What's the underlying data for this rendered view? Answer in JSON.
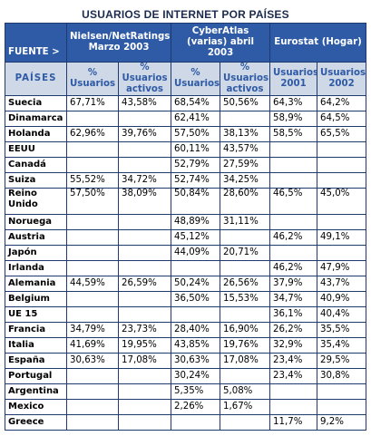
{
  "title": "USUARIOS DE INTERNET POR PAÍSES",
  "header": {
    "fuente": "FUENTE >",
    "sources": [
      "Nielsen/NetRatings Marzo 2003",
      "CyberAtlas (varias) abril 2003",
      "Eurostat (Hogar)"
    ],
    "paises": "PAÍSES",
    "subheaders": [
      "% Usuarios",
      "% Usuarios activos",
      "% Usuarios",
      "% Usuarios activos",
      "Usuarios 2001",
      "Usuarios 2002"
    ]
  },
  "rows": [
    {
      "country": "Suecia",
      "values": [
        "67,71%",
        "43,58%",
        "68,54%",
        "50,56%",
        "64,3%",
        "64,2%"
      ]
    },
    {
      "country": "Dinamarca",
      "values": [
        "",
        "",
        "62,41%",
        "",
        "58,9%",
        "64,5%"
      ]
    },
    {
      "country": "Holanda",
      "values": [
        "62,96%",
        "39,76%",
        "57,50%",
        "38,13%",
        "58,5%",
        "65,5%"
      ]
    },
    {
      "country": "EEUU",
      "values": [
        "",
        "",
        "60,11%",
        "43,57%",
        "",
        ""
      ]
    },
    {
      "country": "Canadá",
      "values": [
        "",
        "",
        "52,79%",
        "27,59%",
        "",
        ""
      ]
    },
    {
      "country": "Suiza",
      "values": [
        "55,52%",
        "34,72%",
        "52,74%",
        "34,25%",
        "",
        ""
      ]
    },
    {
      "country": "Reino Unido",
      "values": [
        "57,50%",
        "38,09%",
        "50,84%",
        "28,60%",
        "46,5%",
        "45,0%"
      ]
    },
    {
      "country": "Noruega",
      "values": [
        "",
        "",
        "48,89%",
        "31,11%",
        "",
        ""
      ]
    },
    {
      "country": "Austria",
      "values": [
        "",
        "",
        "45,12%",
        "",
        "46,2%",
        "49,1%"
      ]
    },
    {
      "country": "Japón",
      "values": [
        "",
        "",
        "44,09%",
        "20,71%",
        "",
        ""
      ]
    },
    {
      "country": "Irlanda",
      "values": [
        "",
        "",
        "",
        "",
        "46,2%",
        "47,9%"
      ]
    },
    {
      "country": "Alemania",
      "values": [
        "44,59%",
        "26,59%",
        "50,24%",
        "26,56%",
        "37,9%",
        "43,7%"
      ]
    },
    {
      "country": "Belgium",
      "values": [
        "",
        "",
        "36,50%",
        "15,53%",
        "34,7%",
        "40,9%"
      ]
    },
    {
      "country": "UE 15",
      "values": [
        "",
        "",
        "",
        "",
        "36,1%",
        "40,4%"
      ]
    },
    {
      "country": "Francia",
      "values": [
        "34,79%",
        "23,73%",
        "28,40%",
        "16,90%",
        "26,2%",
        "35,5%"
      ]
    },
    {
      "country": "Italia",
      "values": [
        "41,69%",
        "19,95%",
        "43,85%",
        "19,76%",
        "32,9%",
        "35,4%"
      ]
    },
    {
      "country": "España",
      "values": [
        "30,63%",
        "17,08%",
        "30,63%",
        "17,08%",
        "23,4%",
        "29,5%"
      ]
    },
    {
      "country": "Portugal",
      "values": [
        "",
        "",
        "30,24%",
        "",
        "23,4%",
        "30,8%"
      ]
    },
    {
      "country": "Argentina",
      "values": [
        "",
        "",
        "5,35%",
        "5,08%",
        "",
        ""
      ]
    },
    {
      "country": "Mexico",
      "values": [
        "",
        "",
        "2,26%",
        "1,67%",
        "",
        ""
      ]
    },
    {
      "country": "Greece",
      "values": [
        "",
        "",
        "",
        "",
        "11,7%",
        "9,2%"
      ]
    }
  ]
}
